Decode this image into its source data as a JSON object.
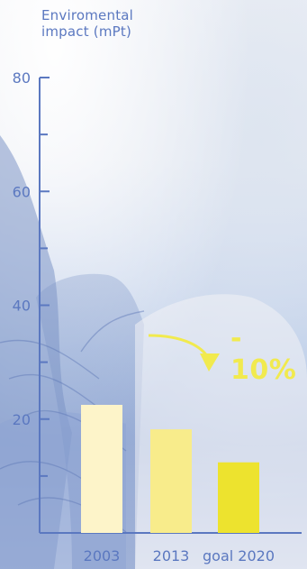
{
  "chart_data": {
    "type": "bar",
    "ylabel": "Enviromental\nimpact (mPt)",
    "categories": [
      "2003",
      "2013",
      "goal 2020"
    ],
    "values": [
      22.5,
      18.2,
      12.4
    ],
    "ylim": [
      0,
      80
    ],
    "yticks": [
      20,
      40,
      60,
      80
    ],
    "yticks_minor": [
      10,
      30,
      50,
      70
    ],
    "grid": false,
    "annotation": "- 10%",
    "colors": {
      "axis": "#5b78c0",
      "bars": [
        "#fdf4c9",
        "#f8ec8b",
        "#ede32e"
      ],
      "annotation": "#f1ea4e"
    }
  }
}
